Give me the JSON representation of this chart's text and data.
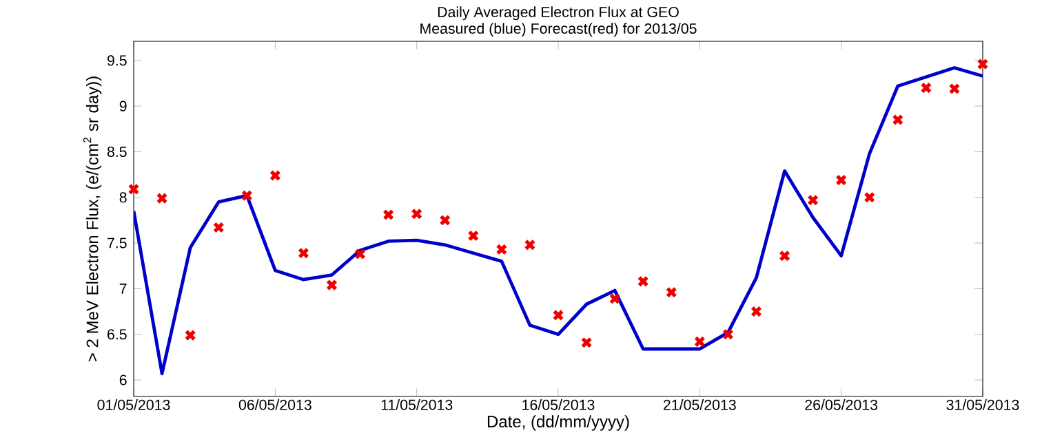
{
  "chart_data": {
    "type": "line",
    "title": "Daily Averaged Electron Flux at GEO",
    "subtitle": "Measured (blue) Forecast(red) for 2013/05",
    "xlabel": "Date, (dd/mm/yyyy)",
    "ylabel": "> 2 MeV Electron Flux, (e/(cm$^{2}$ sr day))",
    "x": [
      "2013-05-01",
      "2013-05-02",
      "2013-05-03",
      "2013-05-04",
      "2013-05-05",
      "2013-05-06",
      "2013-05-07",
      "2013-05-08",
      "2013-05-09",
      "2013-05-10",
      "2013-05-11",
      "2013-05-12",
      "2013-05-13",
      "2013-05-14",
      "2013-05-15",
      "2013-05-16",
      "2013-05-17",
      "2013-05-18",
      "2013-05-19",
      "2013-05-20",
      "2013-05-21",
      "2013-05-22",
      "2013-05-23",
      "2013-05-24",
      "2013-05-25",
      "2013-05-26",
      "2013-05-27",
      "2013-05-28",
      "2013-05-29",
      "2013-05-30",
      "2013-05-31"
    ],
    "series": [
      {
        "color": "#0000cc",
        "marker": "none",
        "line_style": "solid",
        "values": [
          7.85,
          6.07,
          7.45,
          7.95,
          8.02,
          7.2,
          7.1,
          7.15,
          7.42,
          7.52,
          7.53,
          7.48,
          7.39,
          7.3,
          6.6,
          6.5,
          6.83,
          6.98,
          6.34,
          6.34,
          6.34,
          6.52,
          7.12,
          8.29,
          7.78,
          7.36,
          8.48,
          9.22,
          9.32,
          9.42,
          9.33
        ]
      },
      {
        "type": "scatter",
        "color": "#ee0000",
        "marker": "cross",
        "values": [
          8.09,
          7.99,
          6.49,
          7.67,
          8.02,
          8.24,
          7.39,
          7.04,
          7.38,
          7.81,
          7.82,
          7.75,
          7.58,
          7.43,
          7.48,
          6.71,
          6.41,
          6.89,
          7.08,
          6.96,
          6.42,
          6.5,
          6.75,
          7.36,
          7.97,
          8.19,
          8.0,
          8.85,
          9.2,
          9.19,
          9.46
        ]
      }
    ],
    "xlim": [
      "2013-05-01",
      "2013-05-31"
    ],
    "xticks": [
      {
        "value": "2013-05-01",
        "label": "01/05/2013"
      },
      {
        "value": "2013-05-06",
        "label": "06/05/2013"
      },
      {
        "value": "2013-05-11",
        "label": "11/05/2013"
      },
      {
        "value": "2013-05-16",
        "label": "16/05/2013"
      },
      {
        "value": "2013-05-21",
        "label": "21/05/2013"
      },
      {
        "value": "2013-05-26",
        "label": "26/05/2013"
      },
      {
        "value": "2013-05-31",
        "label": "31/05/2013"
      }
    ],
    "ylim": [
      5.82,
      9.71
    ],
    "yticks": [
      6,
      6.5,
      7,
      7.5,
      8,
      8.5,
      9,
      9.5
    ],
    "grid": false
  }
}
